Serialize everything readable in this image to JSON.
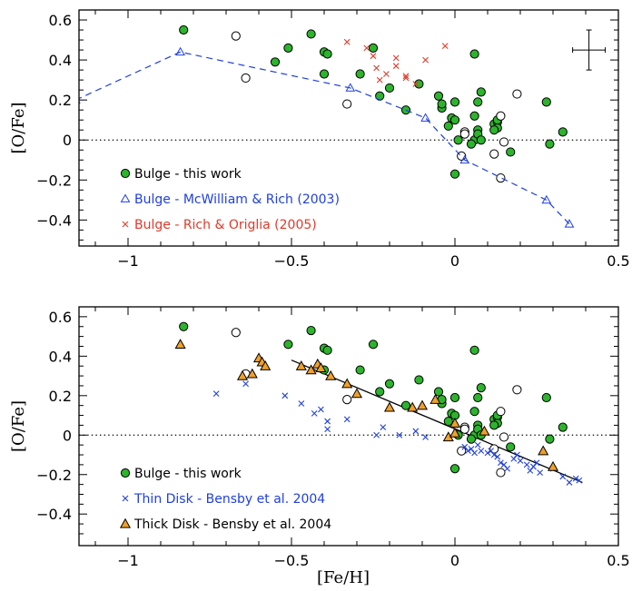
{
  "chart_data": [
    {
      "type": "scatter",
      "panel": "top",
      "xlabel": "",
      "ylabel": "[O/Fe]",
      "xlim": [
        -1.15,
        0.5
      ],
      "ylim": [
        -0.53,
        0.65
      ],
      "x_ticks": [
        -1,
        -0.5,
        0,
        0.5
      ],
      "x_tick_labels": [
        "−1",
        "−0.5",
        "0",
        "0.5"
      ],
      "y_ticks": [
        -0.4,
        -0.2,
        0,
        0.2,
        0.4,
        0.6
      ],
      "y_tick_labels": [
        "−0.4",
        "−0.2",
        "0",
        "0.2",
        "0.4",
        "0.6"
      ],
      "reference_line_y": 0,
      "grid": false,
      "legend_position": "bottom-left",
      "error_bar": {
        "x": 0.41,
        "y": 0.45,
        "xerr": 0.05,
        "yerr": 0.1
      },
      "series": [
        {
          "name": "Bulge - this work",
          "marker": "circle-filled",
          "color": "#2cb42c",
          "points": [
            [
              -0.83,
              0.55
            ],
            [
              -0.51,
              0.46
            ],
            [
              -0.44,
              0.53
            ],
            [
              -0.55,
              0.39
            ],
            [
              -0.4,
              0.44
            ],
            [
              -0.39,
              0.43
            ],
            [
              -0.4,
              0.33
            ],
            [
              -0.29,
              0.33
            ],
            [
              -0.25,
              0.46
            ],
            [
              -0.2,
              0.26
            ],
            [
              -0.23,
              0.22
            ],
            [
              -0.11,
              0.28
            ],
            [
              -0.15,
              0.15
            ],
            [
              -0.05,
              0.22
            ],
            [
              -0.04,
              0.16
            ],
            [
              -0.04,
              0.18
            ],
            [
              0.0,
              0.19
            ],
            [
              -0.01,
              0.11
            ],
            [
              -0.02,
              0.07
            ],
            [
              0.0,
              0.1
            ],
            [
              0.01,
              0.0
            ],
            [
              0.06,
              0.43
            ],
            [
              0.08,
              0.24
            ],
            [
              0.07,
              0.19
            ],
            [
              0.06,
              0.12
            ],
            [
              0.07,
              0.05
            ],
            [
              0.06,
              0.0
            ],
            [
              0.07,
              0.03
            ],
            [
              0.08,
              0.0
            ],
            [
              0.05,
              -0.02
            ],
            [
              0.12,
              0.08
            ],
            [
              0.13,
              0.09
            ],
            [
              0.13,
              0.06
            ],
            [
              0.12,
              0.05
            ],
            [
              0.13,
              0.1
            ],
            [
              0.17,
              -0.06
            ],
            [
              0.28,
              0.19
            ],
            [
              0.29,
              -0.02
            ],
            [
              0.33,
              0.04
            ],
            [
              0.0,
              -0.17
            ]
          ]
        },
        {
          "name": "",
          "marker": "circle-open",
          "color": "#000000",
          "points": [
            [
              -0.67,
              0.52
            ],
            [
              -0.64,
              0.31
            ],
            [
              -0.33,
              0.18
            ],
            [
              0.03,
              0.04
            ],
            [
              0.03,
              0.03
            ],
            [
              0.12,
              -0.07
            ],
            [
              0.14,
              0.12
            ],
            [
              0.15,
              -0.01
            ],
            [
              0.19,
              0.23
            ],
            [
              0.14,
              -0.19
            ],
            [
              0.02,
              -0.08
            ]
          ]
        },
        {
          "name": "Bulge - McWilliam & Rich (2003)",
          "marker": "triangle-open",
          "color": "#1f3fe0",
          "line": "dashed",
          "points": [
            [
              -1.16,
              0.2
            ],
            [
              -0.84,
              0.44
            ],
            [
              -0.32,
              0.26
            ],
            [
              -0.09,
              0.11
            ],
            [
              0.03,
              -0.1
            ],
            [
              0.28,
              -0.3
            ],
            [
              0.35,
              -0.42
            ]
          ]
        },
        {
          "name": "Bulge - Rich & Origlia (2005)",
          "marker": "x",
          "color": "#e03a2a",
          "points": [
            [
              -0.33,
              0.49
            ],
            [
              -0.27,
              0.46
            ],
            [
              -0.25,
              0.42
            ],
            [
              -0.24,
              0.36
            ],
            [
              -0.21,
              0.33
            ],
            [
              -0.23,
              0.3
            ],
            [
              -0.18,
              0.41
            ],
            [
              -0.18,
              0.37
            ],
            [
              -0.15,
              0.32
            ],
            [
              -0.15,
              0.31
            ],
            [
              -0.12,
              0.28
            ],
            [
              -0.09,
              0.4
            ],
            [
              -0.03,
              0.47
            ]
          ]
        }
      ]
    },
    {
      "type": "scatter",
      "panel": "bottom",
      "xlabel": "[Fe/H]",
      "ylabel": "[O/Fe]",
      "xlim": [
        -1.15,
        0.5
      ],
      "ylim": [
        -0.56,
        0.65
      ],
      "x_ticks": [
        -1,
        -0.5,
        0,
        0.5
      ],
      "x_tick_labels": [
        "−1",
        "−0.5",
        "0",
        "0.5"
      ],
      "y_ticks": [
        -0.4,
        -0.2,
        0,
        0.2,
        0.4,
        0.6
      ],
      "y_tick_labels": [
        "−0.4",
        "−0.2",
        "0",
        "0.2",
        "0.4",
        "0.6"
      ],
      "reference_line_y": 0,
      "grid": false,
      "legend_position": "bottom-left",
      "fit_line": {
        "x": [
          -0.5,
          0.39
        ],
        "y": [
          0.38,
          -0.24
        ]
      },
      "series": [
        {
          "name": "Bulge - this work",
          "marker": "circle-filled",
          "color": "#2cb42c",
          "points": [
            [
              -0.83,
              0.55
            ],
            [
              -0.51,
              0.46
            ],
            [
              -0.44,
              0.53
            ],
            [
              -0.4,
              0.44
            ],
            [
              -0.39,
              0.43
            ],
            [
              -0.4,
              0.33
            ],
            [
              -0.29,
              0.33
            ],
            [
              -0.25,
              0.46
            ],
            [
              -0.2,
              0.26
            ],
            [
              -0.23,
              0.22
            ],
            [
              -0.11,
              0.28
            ],
            [
              -0.15,
              0.15
            ],
            [
              -0.05,
              0.22
            ],
            [
              -0.04,
              0.16
            ],
            [
              -0.04,
              0.18
            ],
            [
              0.0,
              0.19
            ],
            [
              -0.01,
              0.11
            ],
            [
              -0.02,
              0.07
            ],
            [
              0.0,
              0.1
            ],
            [
              0.01,
              0.0
            ],
            [
              0.06,
              0.43
            ],
            [
              0.08,
              0.24
            ],
            [
              0.07,
              0.19
            ],
            [
              0.06,
              0.12
            ],
            [
              0.07,
              0.05
            ],
            [
              0.06,
              0.0
            ],
            [
              0.07,
              0.03
            ],
            [
              0.08,
              0.0
            ],
            [
              0.05,
              -0.02
            ],
            [
              0.12,
              0.08
            ],
            [
              0.13,
              0.09
            ],
            [
              0.13,
              0.06
            ],
            [
              0.12,
              0.05
            ],
            [
              0.13,
              0.1
            ],
            [
              0.17,
              -0.06
            ],
            [
              0.28,
              0.19
            ],
            [
              0.29,
              -0.02
            ],
            [
              0.33,
              0.04
            ],
            [
              0.0,
              -0.17
            ]
          ]
        },
        {
          "name": "",
          "marker": "circle-open",
          "color": "#000000",
          "points": [
            [
              -0.67,
              0.52
            ],
            [
              -0.64,
              0.31
            ],
            [
              -0.33,
              0.18
            ],
            [
              0.03,
              0.04
            ],
            [
              0.03,
              0.03
            ],
            [
              0.12,
              -0.07
            ],
            [
              0.14,
              0.12
            ],
            [
              0.15,
              -0.01
            ],
            [
              0.19,
              0.23
            ],
            [
              0.14,
              -0.19
            ],
            [
              0.02,
              -0.08
            ]
          ]
        },
        {
          "name": "Thin Disk - Bensby et al. 2004",
          "marker": "x",
          "color": "#1f3fe0",
          "points": [
            [
              -0.73,
              0.21
            ],
            [
              -0.64,
              0.26
            ],
            [
              -0.52,
              0.2
            ],
            [
              -0.47,
              0.16
            ],
            [
              -0.43,
              0.11
            ],
            [
              -0.41,
              0.13
            ],
            [
              -0.39,
              0.07
            ],
            [
              -0.39,
              0.03
            ],
            [
              -0.33,
              0.08
            ],
            [
              -0.24,
              0.0
            ],
            [
              -0.22,
              0.04
            ],
            [
              -0.17,
              0.0
            ],
            [
              -0.12,
              0.02
            ],
            [
              -0.09,
              -0.01
            ],
            [
              0.0,
              0.05
            ],
            [
              0.03,
              -0.06
            ],
            [
              0.04,
              -0.08
            ],
            [
              0.05,
              -0.07
            ],
            [
              0.06,
              -0.09
            ],
            [
              0.07,
              -0.05
            ],
            [
              0.08,
              -0.08
            ],
            [
              0.1,
              -0.09
            ],
            [
              0.11,
              -0.08
            ],
            [
              0.12,
              -0.1
            ],
            [
              0.13,
              -0.11
            ],
            [
              0.14,
              -0.14
            ],
            [
              0.15,
              -0.15
            ],
            [
              0.16,
              -0.17
            ],
            [
              0.18,
              -0.12
            ],
            [
              0.19,
              -0.1
            ],
            [
              0.2,
              -0.13
            ],
            [
              0.22,
              -0.15
            ],
            [
              0.23,
              -0.18
            ],
            [
              0.24,
              -0.16
            ],
            [
              0.25,
              -0.14
            ],
            [
              0.26,
              -0.19
            ],
            [
              0.3,
              -0.17
            ],
            [
              0.33,
              -0.21
            ],
            [
              0.35,
              -0.24
            ],
            [
              0.37,
              -0.22
            ],
            [
              0.38,
              -0.23
            ]
          ]
        },
        {
          "name": "Thick Disk - Bensby et al. 2004",
          "marker": "triangle-filled",
          "color": "#f0a028",
          "points": [
            [
              -0.84,
              0.46
            ],
            [
              -0.65,
              0.3
            ],
            [
              -0.62,
              0.31
            ],
            [
              -0.6,
              0.39
            ],
            [
              -0.59,
              0.37
            ],
            [
              -0.58,
              0.35
            ],
            [
              -0.47,
              0.35
            ],
            [
              -0.44,
              0.33
            ],
            [
              -0.42,
              0.36
            ],
            [
              -0.41,
              0.34
            ],
            [
              -0.38,
              0.3
            ],
            [
              -0.33,
              0.26
            ],
            [
              -0.3,
              0.21
            ],
            [
              -0.2,
              0.14
            ],
            [
              -0.13,
              0.14
            ],
            [
              -0.1,
              0.15
            ],
            [
              -0.06,
              0.18
            ],
            [
              0.0,
              0.06
            ],
            [
              -0.02,
              -0.01
            ],
            [
              0.0,
              0.01
            ],
            [
              0.09,
              0.02
            ],
            [
              0.27,
              -0.08
            ],
            [
              0.3,
              -0.16
            ]
          ]
        }
      ]
    }
  ]
}
